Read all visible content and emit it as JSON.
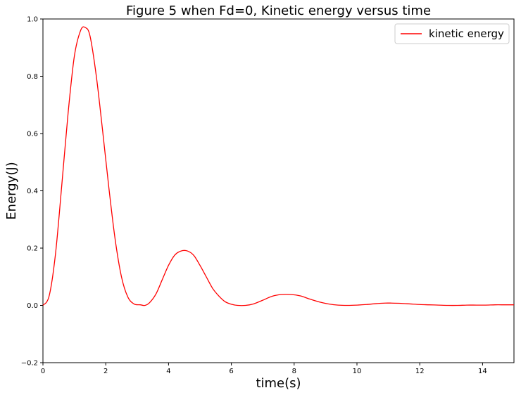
{
  "chart_data": {
    "type": "line",
    "title": "Figure 5 when Fd=0, Kinetic energy versus time",
    "xlabel": "time(s)",
    "ylabel": "Energy(J)",
    "xlim": [
      0,
      15
    ],
    "ylim": [
      -0.2,
      1.0
    ],
    "xticks": [
      0,
      2,
      4,
      6,
      8,
      10,
      12,
      14
    ],
    "yticks": [
      -0.2,
      0.0,
      0.2,
      0.4,
      0.6,
      0.8,
      1.0
    ],
    "xtick_labels": [
      "0",
      "2",
      "4",
      "6",
      "8",
      "10",
      "12",
      "14"
    ],
    "ytick_labels": [
      "−0.2",
      "0.0",
      "0.2",
      "0.4",
      "0.6",
      "0.8",
      "1.0"
    ],
    "grid": false,
    "legend": {
      "position": "top-right"
    },
    "series": [
      {
        "name": "kinetic energy",
        "color": "#ff0000",
        "x": [
          0,
          0.2,
          0.4,
          0.6,
          0.8,
          1.0,
          1.2,
          1.35,
          1.5,
          1.7,
          1.9,
          2.1,
          2.3,
          2.5,
          2.7,
          2.9,
          3.1,
          3.25,
          3.4,
          3.6,
          3.8,
          4.0,
          4.2,
          4.4,
          4.6,
          4.8,
          5.0,
          5.2,
          5.4,
          5.6,
          5.8,
          6.0,
          6.2,
          6.45,
          6.7,
          7.0,
          7.3,
          7.6,
          7.9,
          8.2,
          8.5,
          8.8,
          9.1,
          9.4,
          9.7,
          10.0,
          10.3,
          10.6,
          10.9,
          11.1,
          11.4,
          11.7,
          12.0,
          12.3,
          12.6,
          12.9,
          13.2,
          13.5,
          13.8,
          14.1,
          14.4,
          14.7,
          15.0
        ],
        "values": [
          0.0,
          0.034,
          0.18,
          0.42,
          0.67,
          0.87,
          0.96,
          0.97,
          0.94,
          0.8,
          0.61,
          0.41,
          0.23,
          0.1,
          0.03,
          0.005,
          0.002,
          0.0,
          0.01,
          0.04,
          0.09,
          0.14,
          0.176,
          0.19,
          0.19,
          0.175,
          0.14,
          0.1,
          0.06,
          0.033,
          0.013,
          0.004,
          0.0,
          0.0,
          0.005,
          0.018,
          0.032,
          0.038,
          0.038,
          0.033,
          0.022,
          0.012,
          0.005,
          0.001,
          0.0,
          0.001,
          0.003,
          0.006,
          0.008,
          0.008,
          0.007,
          0.005,
          0.003,
          0.002,
          0.001,
          0.0,
          0.0,
          0.001,
          0.001,
          0.001,
          0.002,
          0.002,
          0.002
        ]
      }
    ]
  }
}
